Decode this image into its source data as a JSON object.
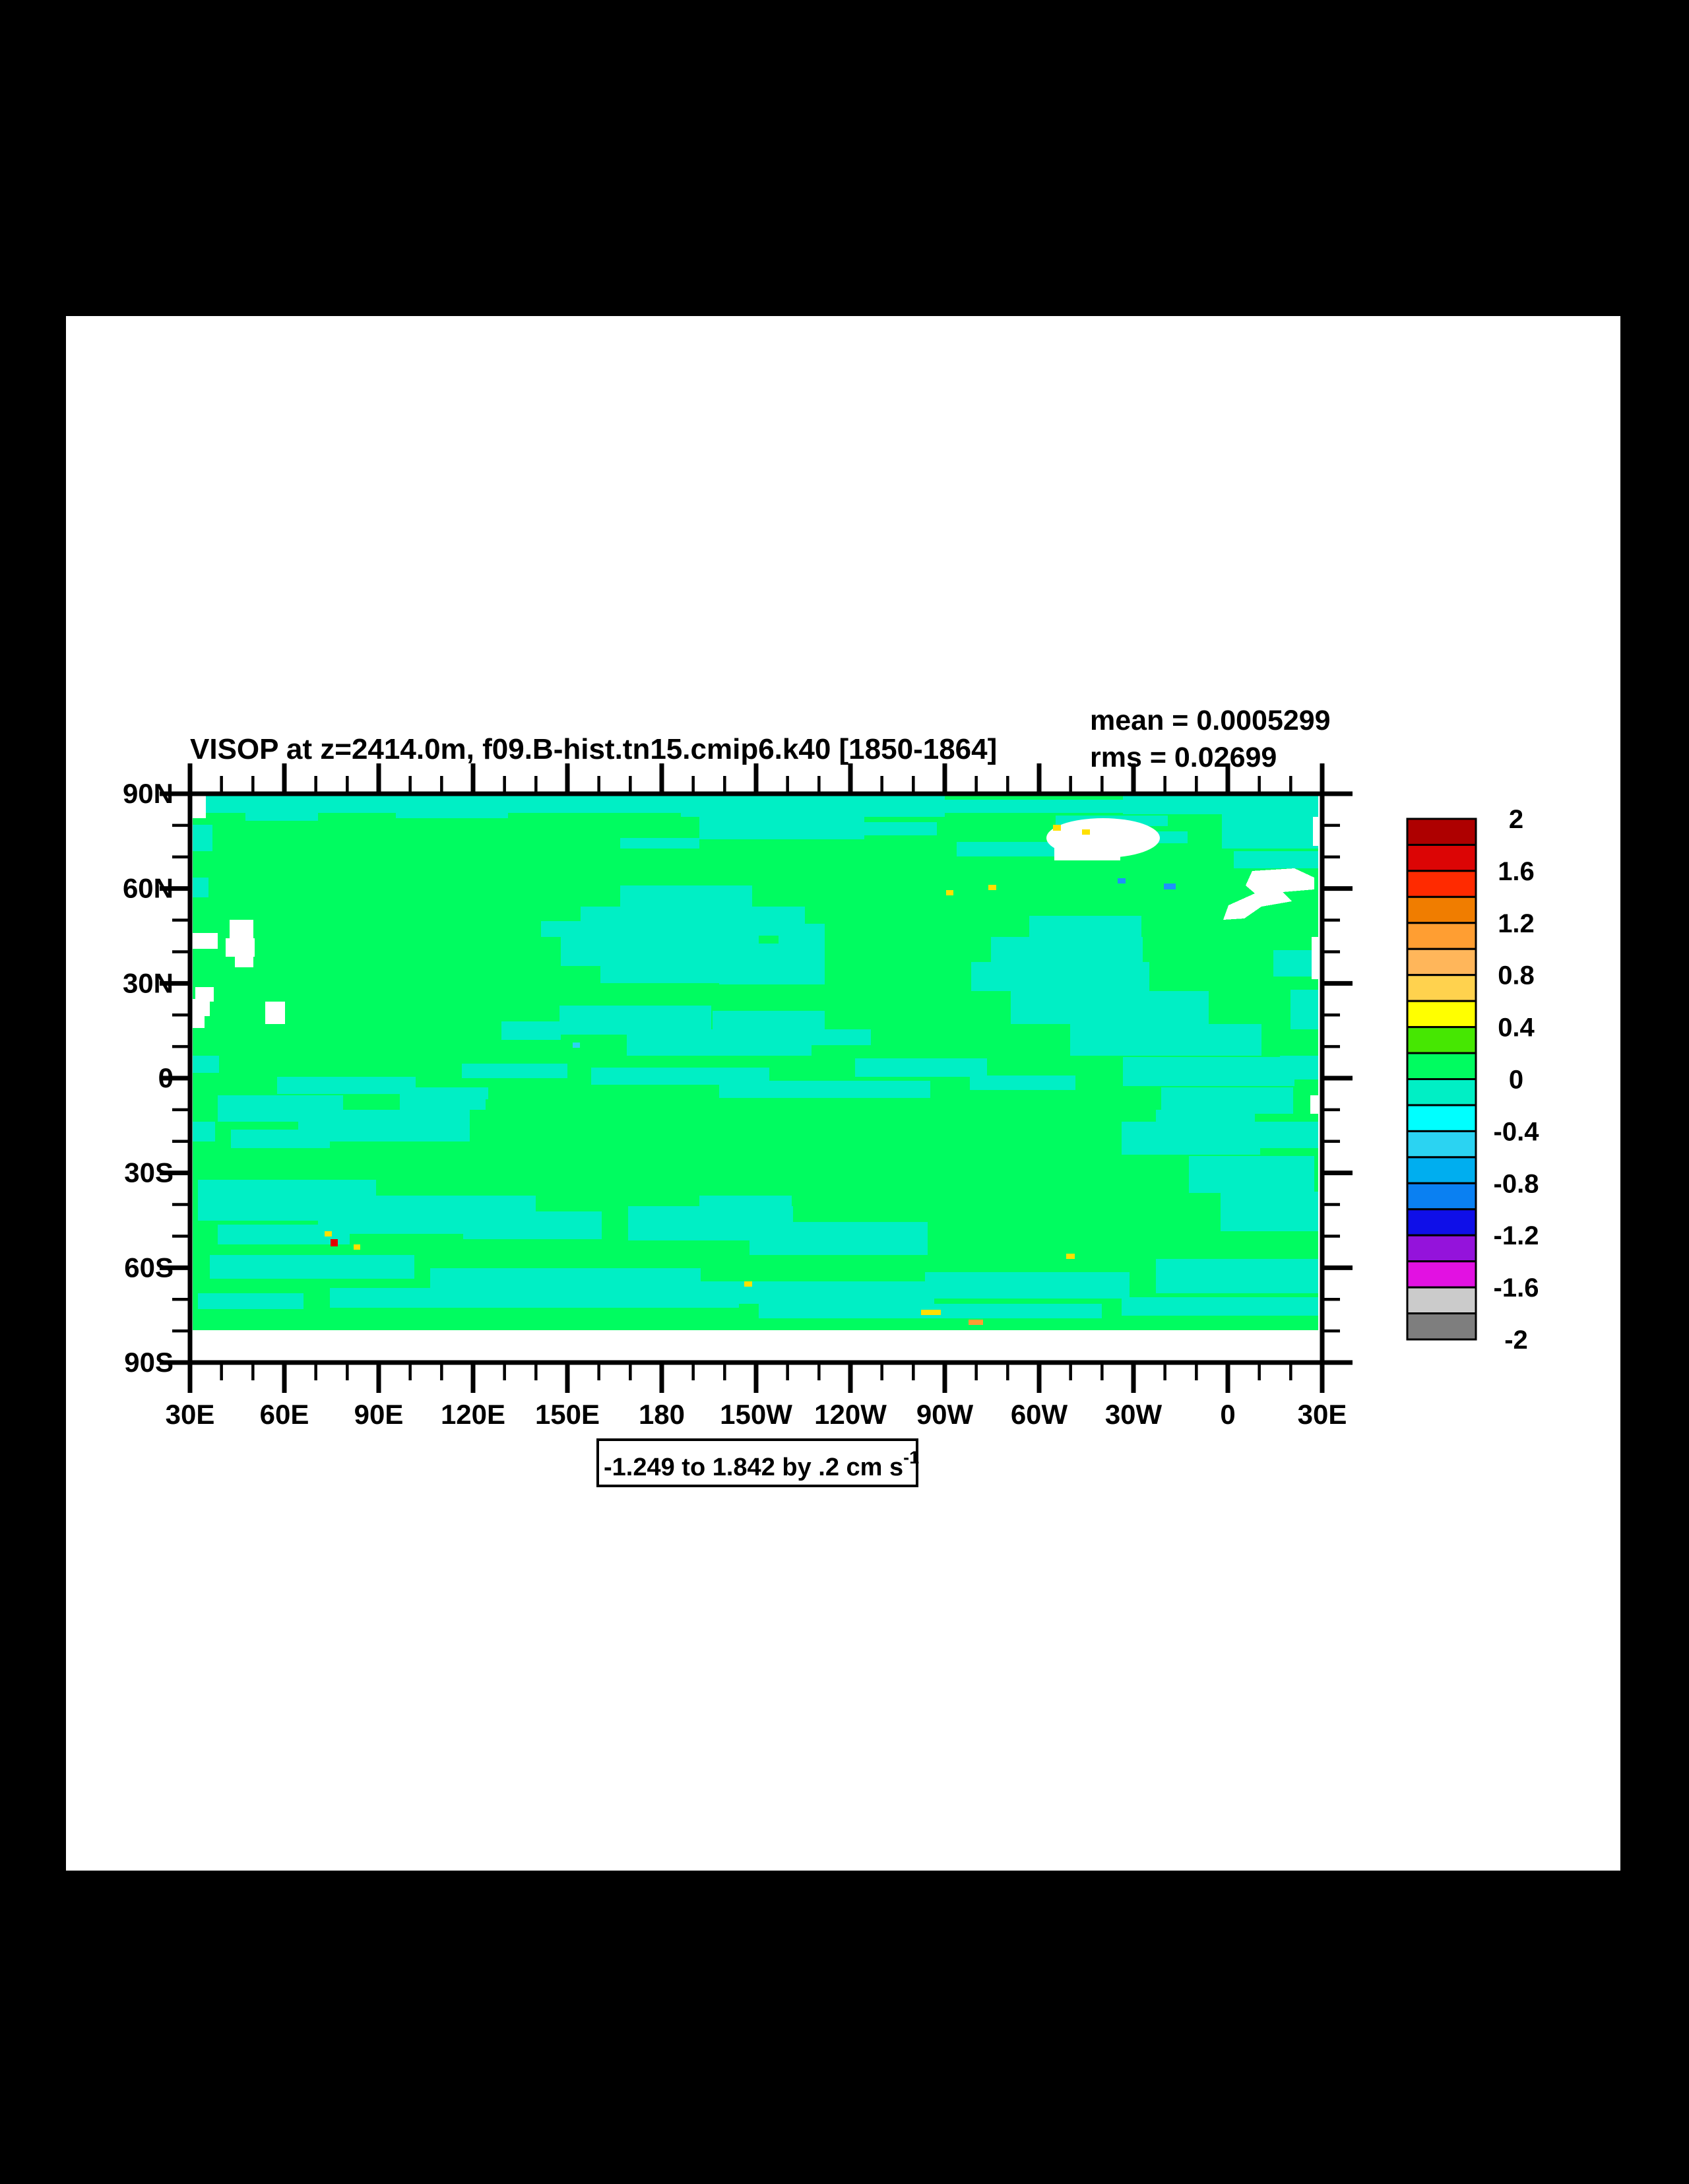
{
  "title": "VISOP at z=2414.0m, f09.B-hist.tn15.cmip6.k40 [1850-1864]",
  "stats": {
    "mean_label": "mean = 0.0005299",
    "rms_label": "rms = 0.02699"
  },
  "range_label": {
    "text": "-1.249 to 1.842 by .2 cm s",
    "superscript": "-1"
  },
  "axes": {
    "y": {
      "labels": [
        "90N",
        "60N",
        "30N",
        "0",
        "30S",
        "60S",
        "90S"
      ]
    },
    "x": {
      "labels": [
        "30E",
        "60E",
        "90E",
        "120E",
        "150E",
        "180",
        "150W",
        "120W",
        "90W",
        "60W",
        "30W",
        "0",
        "30E"
      ]
    }
  },
  "colorbar": {
    "tick_labels": [
      "2",
      "1.6",
      "1.2",
      "0.8",
      "0.4",
      "0",
      "-0.4",
      "-0.8",
      "-1.2",
      "-1.6",
      "-2"
    ],
    "colors": [
      "#AE0000",
      "#DC0505",
      "#FF2A00",
      "#F07D00",
      "#FF9E32",
      "#FFB65A",
      "#FFD24E",
      "#FFFF00",
      "#46E702",
      "#00FC60",
      "#00EFC5",
      "#00FFFF",
      "#2BD3F2",
      "#00AEEF",
      "#0A80F2",
      "#0F0FE8",
      "#9413DB",
      "#E211E2",
      "#CBCBCB",
      "#7E7E7E"
    ]
  },
  "map": {
    "ocean_positive_color": "#00FC60",
    "ocean_negative_color": "#00EFC5",
    "land_color": "#FFFFFF",
    "speckle_yellow": "#FFE000",
    "speckle_red": "#E00000",
    "speckle_orange": "#FF9E32",
    "speckle_blue": "#1E90FF",
    "speckle_skyblue": "#2BD3F2",
    "page_color": "#FFFFFF",
    "frame_color": "#000000"
  },
  "chart_data": {
    "type": "heatmap",
    "title": "VISOP at z=2414.0m, f09.B-hist.tn15.cmip6.k40 [1850-1864]",
    "mean": 0.0005299,
    "rms": 0.02699,
    "data_min": -1.249,
    "data_max": 1.842,
    "contour_interval": 0.2,
    "units": "cm s-1",
    "x_axis": {
      "tick_labels": [
        "30E",
        "60E",
        "90E",
        "120E",
        "150E",
        "180",
        "150W",
        "120W",
        "90W",
        "60W",
        "30W",
        "0",
        "30E"
      ],
      "minor_tick_every_deg": 10,
      "major_tick_every_deg": 30
    },
    "y_axis": {
      "tick_labels": [
        "90N",
        "60N",
        "30N",
        "0",
        "30S",
        "60S",
        "90S"
      ],
      "minor_tick_every_deg": 10,
      "major_tick_every_deg": 30
    },
    "colorbar_levels": [
      2,
      1.6,
      1.2,
      0.8,
      0.4,
      0,
      -0.4,
      -0.8,
      -1.2,
      -1.6,
      -2
    ],
    "legend_position": "right",
    "field_summary": "Global ocean field at 2414 m depth; values nearly everywhere between -0.2 and 0.2 cm/s: dominant green (0 to 0.2) with turquoise patches (-0.2 to 0), white masked land (Greenland, Scandinavia, Caspian/Black/Red Sea regions), data void south of ~78S, and sparse tiny yellow/orange/red/blue extreme speckles."
  }
}
